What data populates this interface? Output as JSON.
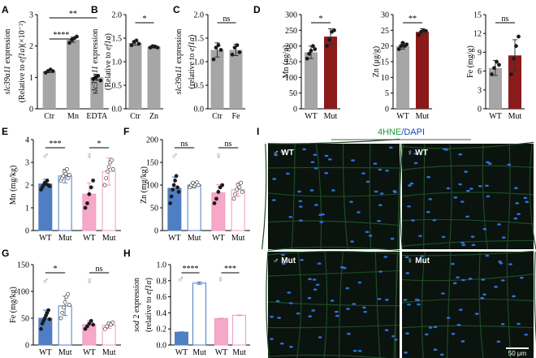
{
  "colors": {
    "gray": "#a6a6a6",
    "darkred": "#8b1a1a",
    "blue": "#4f7ec4",
    "pink": "#f7a8c8",
    "pink_edge": "#f19ac0",
    "sex_symbol": "#8a8a8a",
    "nucleus": "#2f6fd8",
    "tissue_bg": "#0a130d",
    "membrane": "#1e4a26"
  },
  "chart_data": [
    {
      "panel": "A",
      "type": "bar",
      "ylabel_html_parts": [
        "slc39a11",
        " expression"
      ],
      "ylabel2_parts": [
        "(Relative to ",
        "ef1a",
        ")(×10⁻²)"
      ],
      "categories": [
        "Ctr",
        "Mn",
        "EDTA"
      ],
      "values": [
        1.2,
        2.2,
        1.0
      ],
      "errors": [
        0.05,
        0.08,
        0.08
      ],
      "points": [
        [
          1.15,
          1.2,
          1.25,
          1.2
        ],
        [
          2.1,
          2.2,
          2.25,
          2.3
        ],
        [
          0.95,
          1.0,
          1.05,
          0.9
        ]
      ],
      "yticks": [
        0,
        1,
        2,
        3
      ],
      "ylim": [
        0,
        3
      ],
      "comparisons": [
        {
          "a": 0,
          "b": 1,
          "label": "****"
        },
        {
          "a": 0,
          "b": 2,
          "label": "**"
        }
      ]
    },
    {
      "panel": "B",
      "type": "bar",
      "ylabel_html_parts": [
        "slc39a11",
        " expression"
      ],
      "ylabel2_parts": [
        "(Relative to ",
        "ef1a",
        ")"
      ],
      "categories": [
        "Ctr",
        "Zn"
      ],
      "values": [
        1.4,
        1.32
      ],
      "errors": [
        0.05,
        0.03
      ],
      "points": [
        [
          1.35,
          1.42,
          1.45,
          1.38
        ],
        [
          1.3,
          1.33,
          1.32,
          1.3
        ]
      ],
      "yticks": [
        0.0,
        0.5,
        1.0,
        1.5,
        2.0
      ],
      "ylim": [
        0,
        2.0
      ],
      "comparisons": [
        {
          "a": 0,
          "b": 1,
          "label": "*"
        }
      ]
    },
    {
      "panel": "C",
      "type": "bar",
      "ylabel_html_parts": [
        "slc39a11",
        " expression"
      ],
      "ylabel2_parts": [
        "(relative to ",
        "ef1a",
        ")"
      ],
      "categories": [
        "Ctr",
        "Fe"
      ],
      "values": [
        1.25,
        1.25
      ],
      "errors": [
        0.15,
        0.12
      ],
      "points": [
        [
          1.05,
          1.3,
          1.35,
          1.25
        ],
        [
          1.15,
          1.3,
          1.35,
          1.2
        ]
      ],
      "yticks": [
        0.0,
        0.5,
        1.0,
        1.5,
        2.0
      ],
      "ylim": [
        0,
        2.0
      ],
      "comparisons": [
        {
          "a": 0,
          "b": 1,
          "label": "ns"
        }
      ]
    },
    {
      "panel": "D1",
      "type": "bar",
      "ylabel_html_parts": [
        "Mn (ng/g)"
      ],
      "categories": [
        "WT",
        "Mut"
      ],
      "values": [
        180,
        230
      ],
      "errors": [
        20,
        25
      ],
      "points": [
        [
          160,
          175,
          185,
          200,
          190
        ],
        [
          200,
          220,
          245,
          250
        ]
      ],
      "yticks": [
        0,
        50,
        100,
        150,
        200,
        250,
        300
      ],
      "ylim": [
        0,
        300
      ],
      "comparisons": [
        {
          "a": 0,
          "b": 1,
          "label": "*"
        }
      ]
    },
    {
      "panel": "D2",
      "type": "bar",
      "ylabel_html_parts": [
        "Zn (μg/g)"
      ],
      "categories": [
        "WT",
        "Mut"
      ],
      "values": [
        20,
        24.5
      ],
      "errors": [
        1.0,
        1.0
      ],
      "points": [
        [
          19,
          20,
          21,
          20,
          20.5
        ],
        [
          23.5,
          24.5,
          25,
          24.8
        ]
      ],
      "yticks": [
        0,
        5,
        10,
        15,
        20,
        25,
        30
      ],
      "ylim": [
        0,
        30
      ],
      "comparisons": [
        {
          "a": 0,
          "b": 1,
          "label": "**"
        }
      ]
    },
    {
      "panel": "D3",
      "type": "bar",
      "ylabel_html_parts": [
        "Fe (mg/g)"
      ],
      "categories": [
        "WT",
        "Mut"
      ],
      "values": [
        6.5,
        8.5
      ],
      "errors": [
        1.2,
        2.5
      ],
      "points": [
        [
          5.5,
          6.5,
          7.5,
          7.0
        ],
        [
          5.5,
          8.0,
          10.0,
          11.5
        ]
      ],
      "yticks": [
        0,
        3,
        6,
        9,
        12,
        15
      ],
      "ylim": [
        0,
        15
      ],
      "comparisons": [
        {
          "a": 0,
          "b": 1,
          "label": "ns"
        }
      ]
    },
    {
      "panel": "E",
      "type": "bar",
      "ylabel_html_parts": [
        "Mn (mg/kg)"
      ],
      "categories": [
        "WT",
        "Mut",
        "WT",
        "Mut"
      ],
      "groups": [
        "♂",
        "♀"
      ],
      "values": [
        2.05,
        2.4,
        1.6,
        2.6
      ],
      "errors": [
        0.2,
        0.3,
        0.5,
        0.6
      ],
      "points": [
        [
          1.8,
          1.9,
          2.0,
          2.1,
          2.05,
          2.2,
          2.0,
          1.95
        ],
        [
          2.2,
          2.3,
          2.4,
          2.6,
          2.5,
          2.7,
          2.3,
          2.45
        ],
        [
          1.0,
          1.2,
          1.6,
          1.9,
          2.2
        ],
        [
          2.0,
          2.3,
          2.6,
          2.8,
          3.0,
          3.1,
          2.7
        ]
      ],
      "yticks": [
        0,
        1,
        2,
        3,
        4
      ],
      "ylim": [
        0,
        4
      ],
      "comparisons": [
        {
          "a": 0,
          "b": 1,
          "label": "***"
        },
        {
          "a": 2,
          "b": 3,
          "label": "*"
        }
      ]
    },
    {
      "panel": "F",
      "type": "bar",
      "ylabel_html_parts": [
        "Zn (mg/kg)"
      ],
      "categories": [
        "WT",
        "Mut",
        "WT",
        "Mut"
      ],
      "groups": [
        "♂",
        "♀"
      ],
      "values": [
        93,
        100,
        83,
        90
      ],
      "errors": [
        25,
        6,
        18,
        15
      ],
      "points": [
        [
          60,
          75,
          90,
          100,
          110,
          120,
          95,
          85
        ],
        [
          95,
          100,
          105,
          98,
          102,
          106,
          100
        ],
        [
          60,
          70,
          85,
          95,
          100
        ],
        [
          70,
          80,
          90,
          100,
          95,
          105,
          85
        ]
      ],
      "yticks": [
        0,
        50,
        100,
        150,
        200
      ],
      "ylim": [
        0,
        200
      ],
      "comparisons": [
        {
          "a": 0,
          "b": 1,
          "label": "ns"
        },
        {
          "a": 2,
          "b": 3,
          "label": "ns"
        }
      ]
    },
    {
      "panel": "G",
      "type": "bar",
      "ylabel_html_parts": [
        "Fe (mg/kg)"
      ],
      "categories": [
        "WT",
        "Mut",
        "WT",
        "Mut"
      ],
      "groups": [
        "♂",
        "♀"
      ],
      "values": [
        50,
        73,
        38,
        37
      ],
      "errors": [
        15,
        18,
        8,
        6
      ],
      "points": [
        [
          30,
          40,
          45,
          50,
          55,
          60,
          65,
          48
        ],
        [
          50,
          60,
          70,
          80,
          90,
          95,
          75
        ],
        [
          30,
          35,
          40,
          45,
          38
        ],
        [
          30,
          35,
          40,
          38,
          42
        ]
      ],
      "yticks": [
        0,
        50,
        100,
        150
      ],
      "ylim": [
        0,
        150
      ],
      "comparisons": [
        {
          "a": 0,
          "b": 1,
          "label": "*"
        },
        {
          "a": 2,
          "b": 3,
          "label": "ns"
        }
      ]
    },
    {
      "panel": "H",
      "type": "bar",
      "ylabel_html_parts": [
        "sod",
        " 2 expression"
      ],
      "ylabel2_parts": [
        "(relative to ",
        "ef1α",
        ")"
      ],
      "categories": [
        "WT",
        "Mut",
        "WT",
        "Mut"
      ],
      "groups": [
        "♂",
        "♀"
      ],
      "values": [
        0.16,
        0.77,
        0.33,
        0.37
      ],
      "errors": [
        0.005,
        0.015,
        0.005,
        0.005
      ],
      "points": [
        [],
        [],
        [],
        []
      ],
      "yticks": [
        0.0,
        0.2,
        0.4,
        0.6,
        0.8,
        1.0
      ],
      "ylim": [
        0,
        1.0
      ],
      "comparisons": [
        {
          "a": 0,
          "b": 1,
          "label": "****"
        },
        {
          "a": 2,
          "b": 3,
          "label": "***"
        }
      ]
    }
  ],
  "micrographs": {
    "panel_letter": "I",
    "stain_part1": "4HNE",
    "stain_sep": "/",
    "stain_part2": "DAPI",
    "panels": [
      {
        "label": "♂ WT"
      },
      {
        "label": "♀ WT"
      },
      {
        "label": "♂ Mut"
      },
      {
        "label": "♀ Mut"
      }
    ],
    "scale_bar": "50 μm"
  }
}
